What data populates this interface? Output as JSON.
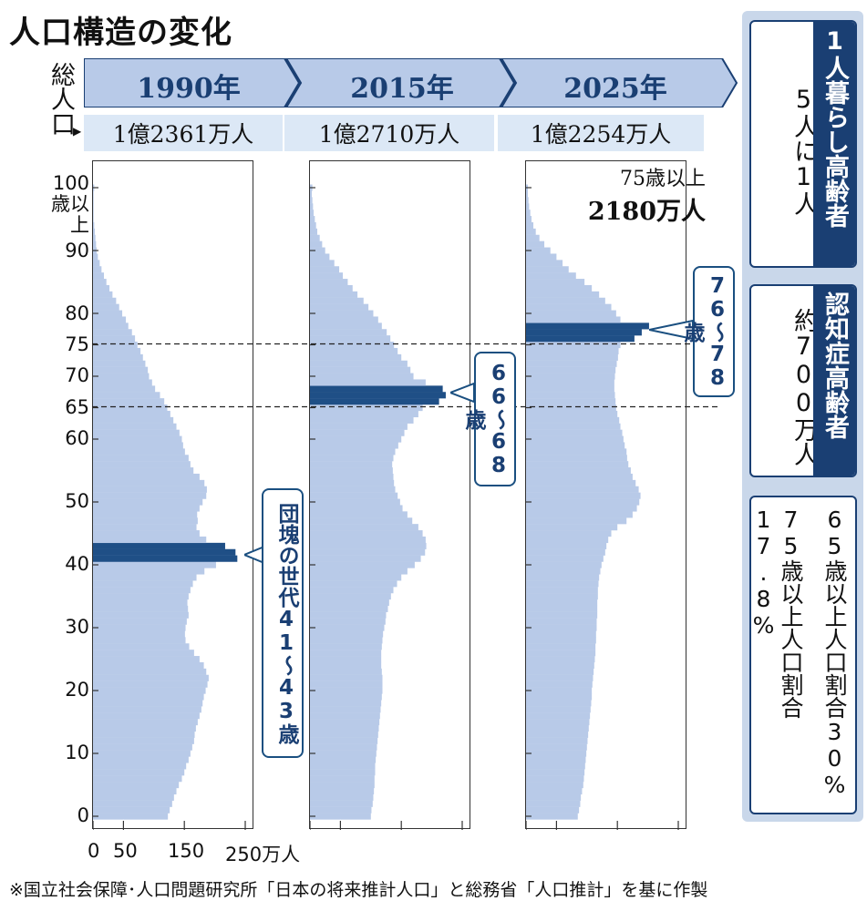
{
  "title": "人口構造の変化",
  "total_population_label": "総人口",
  "years": [
    "1990年",
    "2015年",
    "2025年"
  ],
  "populations": [
    "1億2361万人",
    "1億2710万人",
    "1億2254万人"
  ],
  "footnote": "※国立社会保障･人口問題研究所「日本の将来推計人口」と総務省「人口推計」を基に作製",
  "x_tick_labels": [
    "0",
    "50",
    "150",
    "250万人"
  ],
  "y_tick_labels": [
    "100歳以上",
    "90",
    "80",
    "75",
    "70",
    "65",
    "60",
    "50",
    "40",
    "30",
    "20",
    "10",
    "0"
  ],
  "callouts": {
    "boomers_1990": "団塊の世代41〜43歳",
    "boomers_2015": "66〜68歳",
    "boomers_2025": "76〜78歳"
  },
  "note_2025": {
    "line1": "75歳以上",
    "line2": "2180万人"
  },
  "sidebar": {
    "box1": {
      "header": "1人暮らし高齢者",
      "body": "5人に1人"
    },
    "box2": {
      "header": "認知症高齢者",
      "body": "約700万人"
    },
    "box3": {
      "col_right": "65歳以上人口割合30%",
      "col_left": "75歳以上人口割合17.8%"
    }
  },
  "colors": {
    "bar": "#b8cae8",
    "highlight": "#1f4f86",
    "accent": "#1a3f73",
    "band": "#dce8f6"
  },
  "chart_data": {
    "type": "bar",
    "orientation": "horizontal",
    "title": "人口構造の変化",
    "xlabel": "万人",
    "xlim": [
      0,
      250
    ],
    "x_ticks": [
      0,
      50,
      150,
      250
    ],
    "y_ticks": [
      0,
      10,
      20,
      30,
      40,
      50,
      60,
      65,
      70,
      75,
      80,
      90,
      100
    ],
    "ages": "0-100",
    "reference_lines": [
      65,
      75
    ],
    "series": [
      {
        "name": "1990年",
        "highlight_ages": [
          41,
          42,
          43
        ],
        "values": [
          123,
          126,
          130,
          133,
          137,
          141,
          146,
          150,
          153,
          157,
          160,
          163,
          166,
          167,
          169,
          172,
          175,
          178,
          180,
          182,
          185,
          188,
          190,
          186,
          182,
          175,
          166,
          158,
          152,
          151,
          152,
          154,
          157,
          156,
          155,
          157,
          160,
          164,
          170,
          183,
          202,
          237,
          234,
          217,
          186,
          175,
          170,
          172,
          171,
          175,
          180,
          186,
          187,
          183,
          175,
          165,
          160,
          157,
          151,
          148,
          146,
          142,
          137,
          132,
          127,
          122,
          117,
          110,
          102,
          97,
          92,
          90,
          86,
          82,
          78,
          73,
          69,
          64,
          58,
          54,
          48,
          43,
          38,
          32,
          27,
          22,
          18,
          14,
          11,
          8,
          6,
          5,
          4,
          3,
          2,
          1,
          1,
          1,
          1,
          1,
          2
        ]
      },
      {
        "name": "2015年",
        "highlight_ages": [
          66,
          67,
          68
        ],
        "values": [
          100,
          101,
          103,
          104,
          105,
          106,
          106,
          107,
          107,
          108,
          109,
          110,
          111,
          112,
          113,
          114,
          115,
          116,
          117,
          118,
          119,
          119,
          119,
          118,
          117,
          117,
          117,
          118,
          119,
          120,
          122,
          124,
          125,
          128,
          130,
          133,
          137,
          143,
          150,
          160,
          172,
          182,
          189,
          191,
          190,
          185,
          178,
          168,
          160,
          152,
          148,
          144,
          140,
          138,
          137,
          136,
          135,
          137,
          140,
          145,
          150,
          155,
          160,
          170,
          178,
          185,
          212,
          223,
          218,
          190,
          170,
          165,
          160,
          150,
          144,
          138,
          132,
          126,
          118,
          112,
          104,
          96,
          88,
          78,
          70,
          62,
          54,
          48,
          40,
          32,
          25,
          20,
          16,
          12,
          10,
          8,
          6,
          5,
          4,
          3,
          4
        ]
      },
      {
        "name": "2025年",
        "highlight_ages": [
          76,
          77,
          78
        ],
        "values": [
          85,
          87,
          89,
          90,
          92,
          94,
          95,
          96,
          97,
          98,
          99,
          100,
          101,
          102,
          103,
          104,
          105,
          106,
          107,
          108,
          108,
          109,
          110,
          111,
          112,
          113,
          114,
          114,
          115,
          115,
          116,
          116,
          117,
          117,
          117,
          118,
          118,
          119,
          120,
          122,
          124,
          127,
          130,
          132,
          135,
          140,
          150,
          165,
          175,
          182,
          186,
          188,
          185,
          180,
          175,
          172,
          168,
          166,
          165,
          162,
          160,
          158,
          155,
          153,
          150,
          148,
          147,
          146,
          145,
          145,
          146,
          147,
          149,
          151,
          152,
          155,
          178,
          190,
          202,
          155,
          148,
          140,
          130,
          120,
          108,
          96,
          82,
          70,
          60,
          50,
          40,
          30,
          22,
          16,
          12,
          9,
          7,
          5,
          4,
          3,
          3
        ]
      }
    ]
  }
}
